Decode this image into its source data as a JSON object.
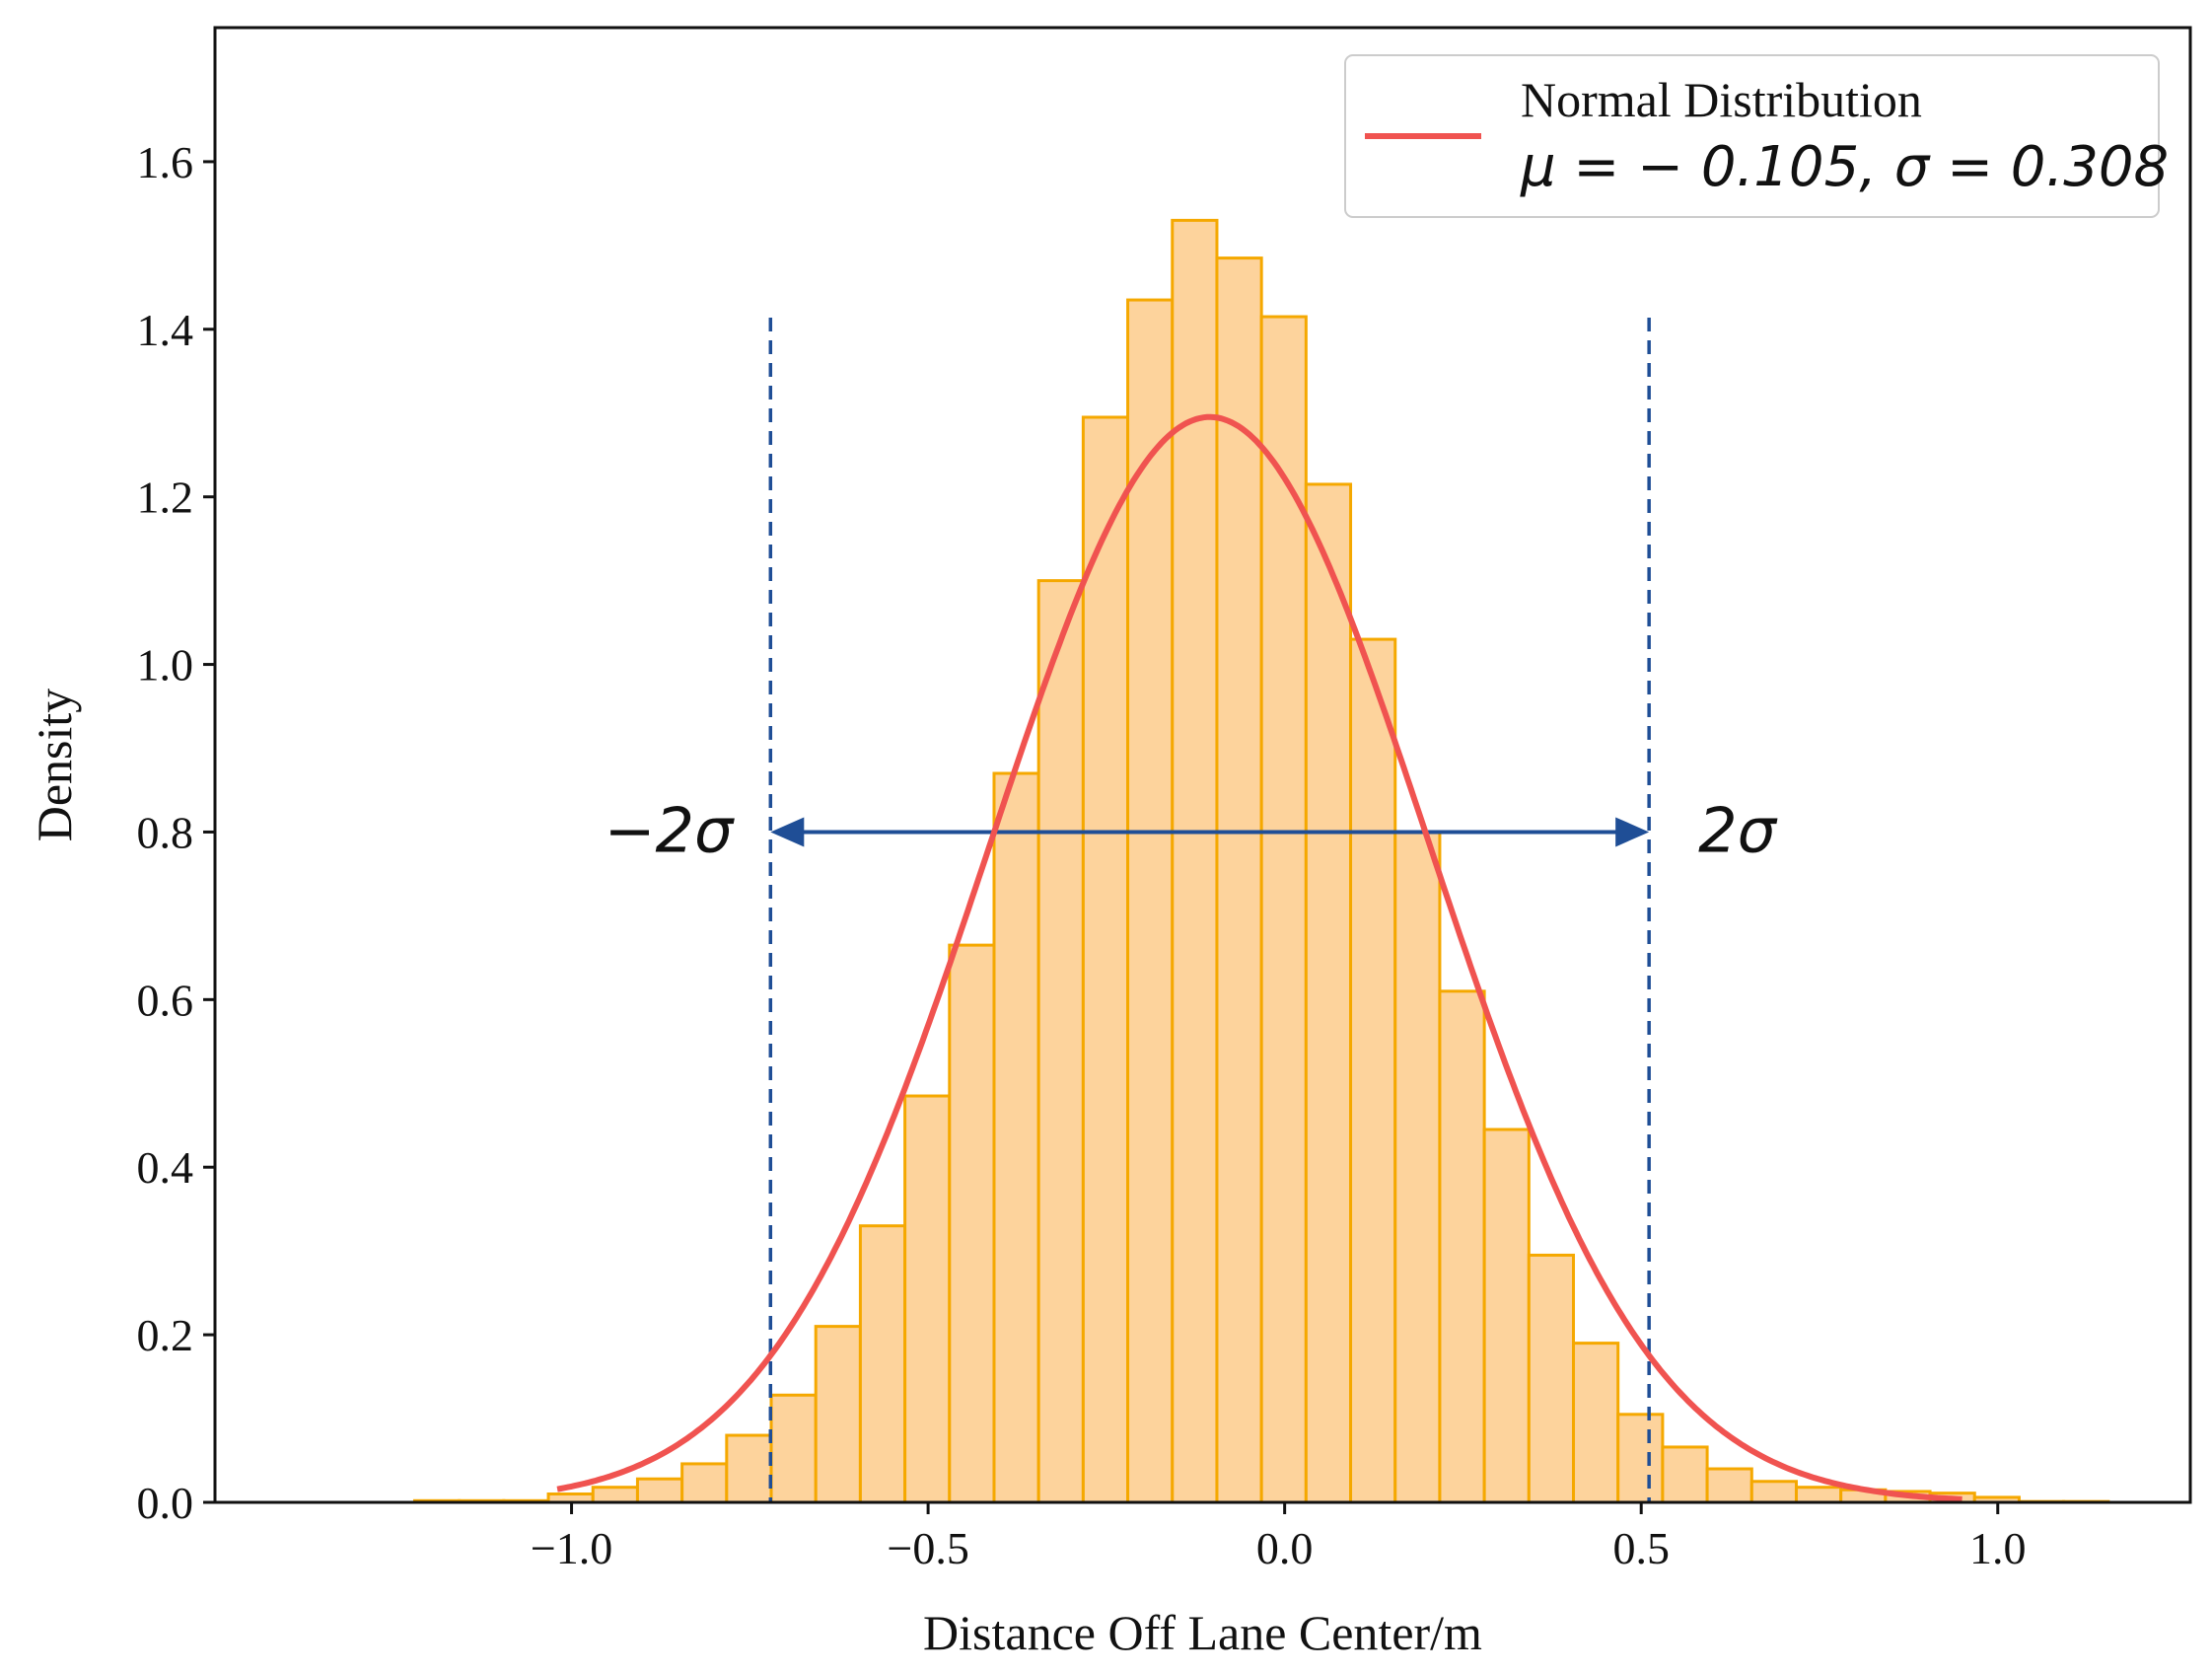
{
  "chart_data": {
    "type": "histogram",
    "xlabel": "Distance Off Lane Center/m",
    "ylabel": "Density",
    "xlim": [
      -1.5,
      1.27
    ],
    "ylim": [
      0,
      1.76
    ],
    "xticks": [
      -1.0,
      -0.5,
      0.0,
      0.5,
      1.0
    ],
    "xtick_labels": [
      "−1.0",
      "−0.5",
      "0.0",
      "0.5",
      "1.0"
    ],
    "yticks": [
      0.0,
      0.2,
      0.4,
      0.6,
      0.8,
      1.0,
      1.2,
      1.4,
      1.6
    ],
    "ytick_labels": [
      "0.0",
      "0.2",
      "0.4",
      "0.6",
      "0.8",
      "1.0",
      "1.2",
      "1.4",
      "1.6"
    ],
    "bin_start": -1.22,
    "bin_width": 0.0625,
    "densities": [
      0.002,
      0.002,
      0.002,
      0.01,
      0.018,
      0.028,
      0.046,
      0.08,
      0.128,
      0.21,
      0.33,
      0.485,
      0.665,
      0.87,
      1.1,
      1.295,
      1.435,
      1.53,
      1.485,
      1.415,
      1.215,
      1.03,
      0.8,
      0.61,
      0.445,
      0.295,
      0.19,
      0.105,
      0.066,
      0.04,
      0.025,
      0.018,
      0.015,
      0.013,
      0.011,
      0.006,
      0.001,
      0.001
    ],
    "bar_fill": "#fdd39c",
    "bar_edge": "#f5a800",
    "normal_curve": {
      "mu": -0.105,
      "sigma": 0.308,
      "color": "#f05350"
    },
    "legend": {
      "title": "Normal Distribution",
      "params": "μ = − 0.105, σ = 0.308",
      "position": "top-right"
    },
    "annotations": {
      "vlines_x": [
        -0.721,
        0.511
      ],
      "vline_color": "#1f4e96",
      "arrow_y": 0.8,
      "arrow_color": "#1f4e96",
      "left_label": "−2σ",
      "right_label": "2σ"
    }
  }
}
